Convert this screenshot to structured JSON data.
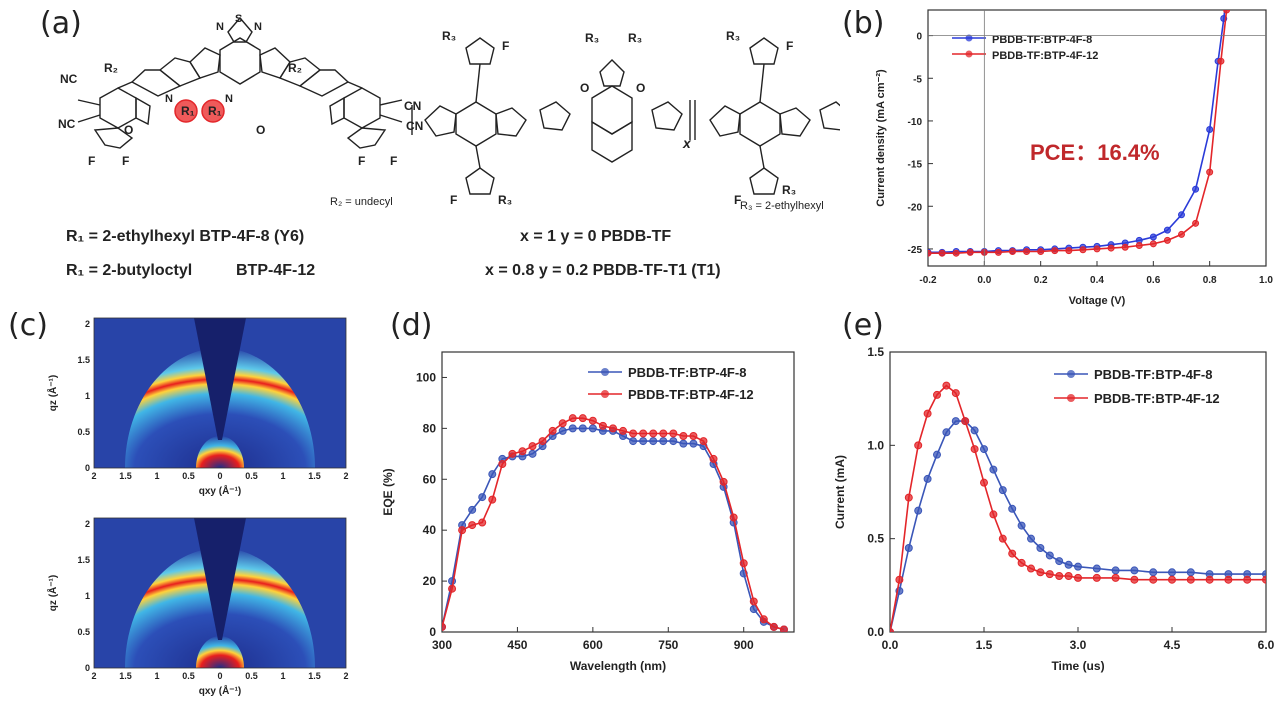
{
  "panels": {
    "a": {
      "label": "(a)",
      "r2_note": "R₂ = undecyl",
      "r3_note": "R₃ = 2-ethylhexyl",
      "y6_line": "R₁ = 2-ethylhexyl BTP-4F-8 (Y6)",
      "btp12_line_left": "R₁ = 2-butyloctyl",
      "btp12_line_right": "BTP-4F-12",
      "pbdb_line": "x = 1 y = 0 PBDB-TF",
      "t1_line": "x = 0.8 y = 0.2 PBDB-TF-T1 (T1)",
      "atoms": {
        "nc": "NC",
        "cn": "CN",
        "n": "N",
        "s": "S",
        "o": "O",
        "f": "F",
        "r1": "R₁",
        "r2": "R₂",
        "r3": "R₃",
        "x": "x",
        "y": "y"
      }
    },
    "b": {
      "label": "(b)",
      "pce": "PCE：16.4%"
    },
    "c": {
      "label": "(c)"
    },
    "d": {
      "label": "(d)"
    },
    "e": {
      "label": "(e)"
    }
  },
  "chart_data": [
    {
      "id": "b",
      "type": "line",
      "xlabel": "Voltage (V)",
      "ylabel": "Current density (mA cm⁻²)",
      "xlim": [
        -0.2,
        1.0
      ],
      "ylim": [
        -27,
        3
      ],
      "xticks": [
        -0.2,
        0.0,
        0.2,
        0.4,
        0.6,
        0.8,
        1.0
      ],
      "yticks": [
        0,
        -5,
        -10,
        -15,
        -20,
        -25
      ],
      "annotation": "PCE：16.4%",
      "series": [
        {
          "name": "PBDB-TF:BTP-4F-8",
          "color": "#2a3bd8",
          "x": [
            -0.2,
            -0.15,
            -0.1,
            -0.05,
            0.0,
            0.05,
            0.1,
            0.15,
            0.2,
            0.25,
            0.3,
            0.35,
            0.4,
            0.45,
            0.5,
            0.55,
            0.6,
            0.65,
            0.7,
            0.75,
            0.8,
            0.83,
            0.85,
            0.86
          ],
          "y": [
            -25.4,
            -25.4,
            -25.3,
            -25.3,
            -25.3,
            -25.2,
            -25.2,
            -25.1,
            -25.1,
            -25.0,
            -24.9,
            -24.8,
            -24.7,
            -24.5,
            -24.3,
            -24.0,
            -23.6,
            -22.8,
            -21.0,
            -18.0,
            -11.0,
            -3.0,
            2.0,
            5.0
          ]
        },
        {
          "name": "PBDB-TF:BTP-4F-12",
          "color": "#e3262a",
          "x": [
            -0.2,
            -0.15,
            -0.1,
            -0.05,
            0.0,
            0.05,
            0.1,
            0.15,
            0.2,
            0.25,
            0.3,
            0.35,
            0.4,
            0.45,
            0.5,
            0.55,
            0.6,
            0.65,
            0.7,
            0.75,
            0.8,
            0.84,
            0.86,
            0.87
          ],
          "y": [
            -25.5,
            -25.5,
            -25.5,
            -25.4,
            -25.4,
            -25.4,
            -25.3,
            -25.3,
            -25.3,
            -25.2,
            -25.2,
            -25.1,
            -25.0,
            -24.9,
            -24.8,
            -24.6,
            -24.4,
            -24.0,
            -23.3,
            -22.0,
            -16.0,
            -3.0,
            3.0,
            6.0
          ]
        }
      ]
    },
    {
      "id": "c",
      "type": "heatmap",
      "xlabel": "qxy (Å⁻¹)",
      "ylabel": "qz (Å⁻¹)",
      "xticks": [
        2.0,
        1.5,
        1.0,
        0.5,
        0,
        0.5,
        1.0,
        1.5,
        2.0
      ],
      "yticks": [
        0,
        0.5,
        1.0,
        1.5,
        2.0
      ],
      "panels": 2
    },
    {
      "id": "d",
      "type": "line",
      "xlabel": "Wavelength (nm)",
      "ylabel": "EQE (%)",
      "xlim": [
        300,
        1000
      ],
      "ylim": [
        0,
        110
      ],
      "xticks": [
        300,
        450,
        600,
        750,
        900
      ],
      "yticks": [
        0,
        20,
        40,
        60,
        80,
        100
      ],
      "series": [
        {
          "name": "PBDB-TF:BTP-4F-8",
          "color": "#3a56b8",
          "x": [
            300,
            320,
            340,
            360,
            380,
            400,
            420,
            440,
            460,
            480,
            500,
            520,
            540,
            560,
            580,
            600,
            620,
            640,
            660,
            680,
            700,
            720,
            740,
            760,
            780,
            800,
            820,
            840,
            860,
            880,
            900,
            920,
            940,
            960,
            980
          ],
          "y": [
            2,
            20,
            42,
            48,
            53,
            62,
            68,
            69,
            69,
            70,
            73,
            77,
            79,
            80,
            80,
            80,
            79,
            79,
            77,
            75,
            75,
            75,
            75,
            75,
            74,
            74,
            73,
            66,
            57,
            43,
            23,
            9,
            4,
            2,
            1
          ]
        },
        {
          "name": "PBDB-TF:BTP-4F-12",
          "color": "#e3262a",
          "x": [
            300,
            320,
            340,
            360,
            380,
            400,
            420,
            440,
            460,
            480,
            500,
            520,
            540,
            560,
            580,
            600,
            620,
            640,
            660,
            680,
            700,
            720,
            740,
            760,
            780,
            800,
            820,
            840,
            860,
            880,
            900,
            920,
            940,
            960,
            980
          ],
          "y": [
            2,
            17,
            40,
            42,
            43,
            52,
            66,
            70,
            71,
            73,
            75,
            79,
            82,
            84,
            84,
            83,
            81,
            80,
            79,
            78,
            78,
            78,
            78,
            78,
            77,
            77,
            75,
            68,
            59,
            45,
            27,
            12,
            5,
            2,
            1
          ]
        }
      ]
    },
    {
      "id": "e",
      "type": "line",
      "xlabel": "Time (us)",
      "ylabel": "Current (mA)",
      "xlim": [
        0,
        6.0
      ],
      "ylim": [
        0,
        1.5
      ],
      "xticks": [
        0.0,
        1.5,
        3.0,
        4.5,
        6.0
      ],
      "yticks": [
        0.0,
        0.5,
        1.0,
        1.5
      ],
      "series": [
        {
          "name": "PBDB-TF:BTP-4F-8",
          "color": "#3a56b8",
          "x": [
            0.0,
            0.15,
            0.3,
            0.45,
            0.6,
            0.75,
            0.9,
            1.05,
            1.2,
            1.35,
            1.5,
            1.65,
            1.8,
            1.95,
            2.1,
            2.25,
            2.4,
            2.55,
            2.7,
            2.85,
            3.0,
            3.3,
            3.6,
            3.9,
            4.2,
            4.5,
            4.8,
            5.1,
            5.4,
            5.7,
            6.0
          ],
          "y": [
            0.0,
            0.22,
            0.45,
            0.65,
            0.82,
            0.95,
            1.07,
            1.13,
            1.13,
            1.08,
            0.98,
            0.87,
            0.76,
            0.66,
            0.57,
            0.5,
            0.45,
            0.41,
            0.38,
            0.36,
            0.35,
            0.34,
            0.33,
            0.33,
            0.32,
            0.32,
            0.32,
            0.31,
            0.31,
            0.31,
            0.31
          ]
        },
        {
          "name": "PBDB-TF:BTP-4F-12",
          "color": "#e3262a",
          "x": [
            0.0,
            0.15,
            0.3,
            0.45,
            0.6,
            0.75,
            0.9,
            1.05,
            1.2,
            1.35,
            1.5,
            1.65,
            1.8,
            1.95,
            2.1,
            2.25,
            2.4,
            2.55,
            2.7,
            2.85,
            3.0,
            3.3,
            3.6,
            3.9,
            4.2,
            4.5,
            4.8,
            5.1,
            5.4,
            5.7,
            6.0
          ],
          "y": [
            0.0,
            0.28,
            0.72,
            1.0,
            1.17,
            1.27,
            1.32,
            1.28,
            1.13,
            0.98,
            0.8,
            0.63,
            0.5,
            0.42,
            0.37,
            0.34,
            0.32,
            0.31,
            0.3,
            0.3,
            0.29,
            0.29,
            0.29,
            0.28,
            0.28,
            0.28,
            0.28,
            0.28,
            0.28,
            0.28,
            0.28
          ]
        }
      ]
    }
  ]
}
